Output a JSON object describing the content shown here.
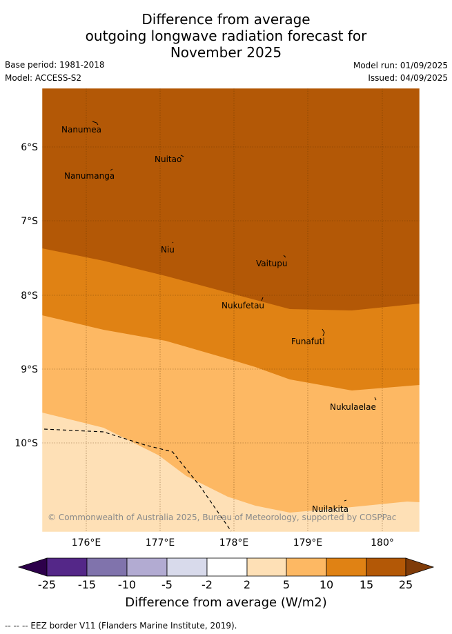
{
  "header": {
    "title_line1": "Difference from average",
    "title_line2": "outgoing longwave radiation forecast for",
    "title_line3": "November 2025",
    "base_period": "Base period: 1981-2018",
    "model": "Model: ACCESS-S2",
    "model_run": "Model run: 01/09/2025",
    "issued": "Issued: 04/09/2025"
  },
  "map": {
    "lat_labels": [
      "6°S",
      "7°S",
      "8°S",
      "9°S",
      "10°S"
    ],
    "lon_labels": [
      "176°E",
      "177°E",
      "178°E",
      "179°E",
      "180°"
    ],
    "places": [
      "Nanumea",
      "Nuitao",
      "Nanumanga",
      "Niu",
      "Vaitupu",
      "Nukufetau",
      "Funafuti",
      "Nukulaelae",
      "Nuilakita"
    ],
    "copyright": "© Commonwealth of Australia 2025, Bureau of Meteorology, supported by COSPPac",
    "band_colors": {
      "above_15": "#b35806",
      "10_to_15": "#e08214",
      "5_to_10": "#fdb863",
      "2_to_5": "#fee0b6"
    }
  },
  "colorbar": {
    "ticks": [
      "-25",
      "-15",
      "-10",
      "-5",
      "-2",
      "2",
      "5",
      "10",
      "15",
      "25"
    ],
    "colors": [
      "#542788",
      "#8073ac",
      "#b2abd2",
      "#d8daeb",
      "#ffffff",
      "#fee0b6",
      "#fdb863",
      "#e08214",
      "#b35806"
    ],
    "under_color": "#2d004b",
    "over_color": "#7f3b08",
    "title": "Difference from average (W/m2)"
  },
  "legend": {
    "eez_note": "-- -- -- EEZ border V11 (Flanders Marine Institute, 2019)."
  }
}
